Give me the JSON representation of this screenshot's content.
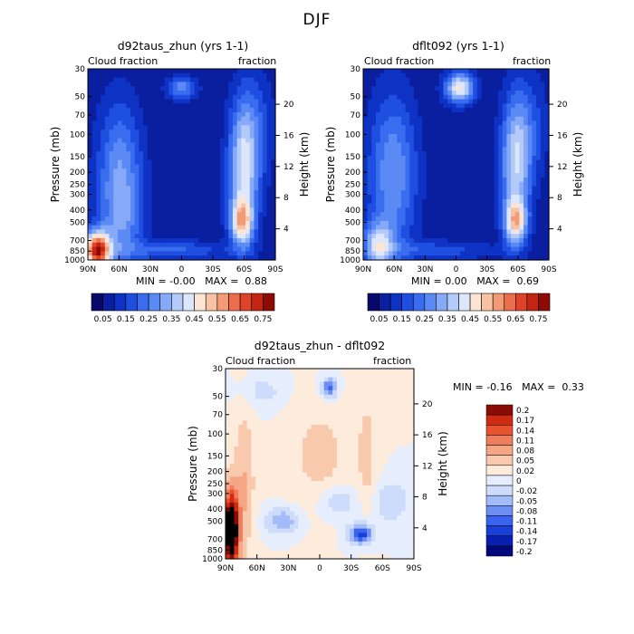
{
  "page": {
    "title": "DJF"
  },
  "colors": {
    "abs_palette": [
      "#08086b",
      "#0a1ea0",
      "#0e32c4",
      "#1f4fe0",
      "#3a6cf0",
      "#5b8af5",
      "#86aaf7",
      "#b4cbf9",
      "#dce7fb",
      "#fde5d4",
      "#f8c2a4",
      "#f39a77",
      "#ec6e4a",
      "#e04428",
      "#c22612",
      "#8e0b05"
    ],
    "diff_palette": [
      "#00087a",
      "#0a1fb0",
      "#1a3ed8",
      "#3a64f0",
      "#6d8ff5",
      "#a3bbf8",
      "#cddcfb",
      "#e6eefd",
      "#fdebdc",
      "#f9c9ad",
      "#f5a684",
      "#f07d5b",
      "#e8532f",
      "#d02a12",
      "#8a0c05"
    ]
  },
  "chart_data": [
    {
      "type": "heatmap",
      "title": "d92taus_zhun (yrs 1-1)",
      "left_label": "Cloud fraction",
      "right_label": "fraction",
      "ylabel": "Pressure (mb)",
      "y2label": "Height (km)",
      "x_ticks": [
        "90N",
        "60N",
        "30N",
        "0",
        "30S",
        "60S",
        "90S"
      ],
      "y_ticks": [
        "30",
        "50",
        "70",
        "100",
        "150",
        "200",
        "250",
        "300",
        "400",
        "500",
        "700",
        "850",
        "1000"
      ],
      "y2_ticks": [
        "20",
        "16",
        "12",
        "8",
        "4"
      ],
      "min_label": "MIN =",
      "min_value": "-0.00",
      "max_label": "MAX =",
      "max_value": "0.88",
      "colorbar_labels": [
        "0.05",
        "0.15",
        "0.25",
        "0.35",
        "0.45",
        "0.55",
        "0.65",
        "0.75"
      ]
    },
    {
      "type": "heatmap",
      "title": "dflt092 (yrs 1-1)",
      "left_label": "Cloud fraction",
      "right_label": "fraction",
      "ylabel": "Pressure (mb)",
      "y2label": "Height (km)",
      "x_ticks": [
        "90N",
        "60N",
        "30N",
        "0",
        "30S",
        "60S",
        "90S"
      ],
      "y_ticks": [
        "30",
        "50",
        "70",
        "100",
        "150",
        "200",
        "250",
        "300",
        "400",
        "500",
        "700",
        "850",
        "1000"
      ],
      "y2_ticks": [
        "20",
        "16",
        "12",
        "8",
        "4"
      ],
      "min_label": "MIN =",
      "min_value": "0.00",
      "max_label": "MAX =",
      "max_value": "0.69",
      "colorbar_labels": [
        "0.05",
        "0.15",
        "0.25",
        "0.35",
        "0.45",
        "0.55",
        "0.65",
        "0.75"
      ]
    },
    {
      "type": "heatmap",
      "title": "d92taus_zhun - dflt092",
      "left_label": "Cloud fraction",
      "right_label": "fraction",
      "ylabel": "Pressure (mb)",
      "y2label": "Height (km)",
      "x_ticks": [
        "90N",
        "60N",
        "30N",
        "0",
        "30S",
        "60S",
        "90S"
      ],
      "y_ticks": [
        "30",
        "50",
        "70",
        "100",
        "150",
        "200",
        "250",
        "300",
        "400",
        "500",
        "700",
        "850",
        "1000"
      ],
      "y2_ticks": [
        "20",
        "16",
        "12",
        "8",
        "4"
      ],
      "min_label": "MIN =",
      "min_value": "-0.16",
      "max_label": "MAX =",
      "max_value": "0.33",
      "colorbar_labels": [
        "0.2",
        "0.17",
        "0.14",
        "0.11",
        "0.08",
        "0.05",
        "0.02",
        "0",
        "-0.02",
        "-0.05",
        "-0.08",
        "-0.11",
        "-0.14",
        "-0.17",
        "-0.2"
      ]
    }
  ]
}
